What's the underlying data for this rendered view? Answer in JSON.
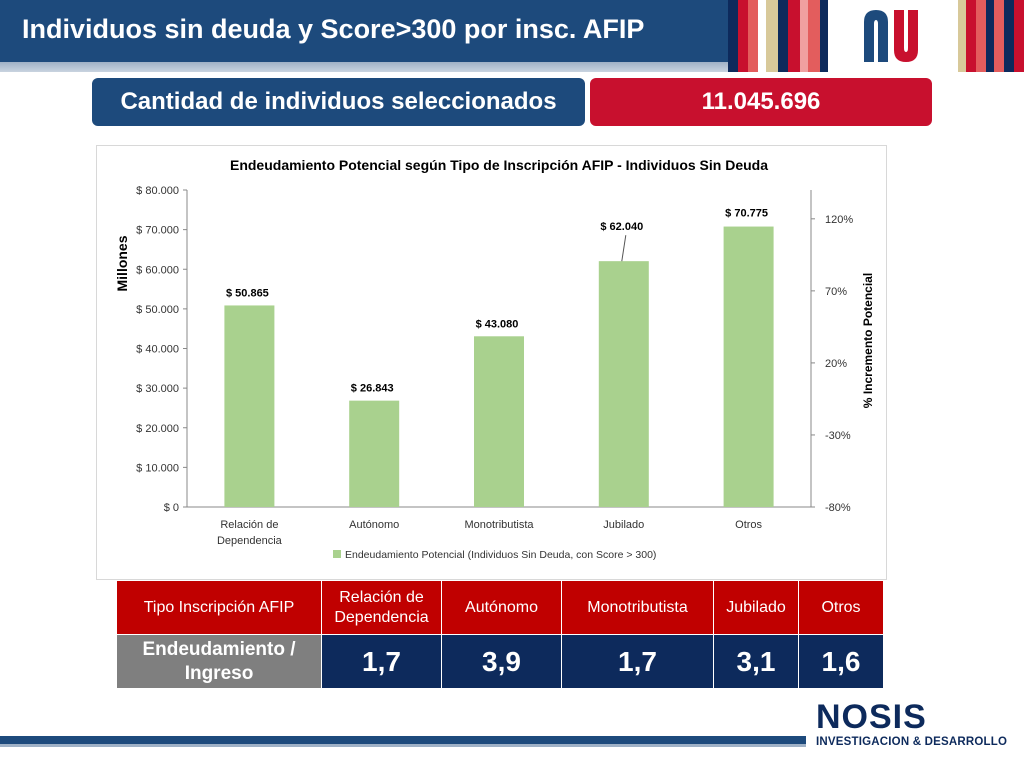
{
  "header": {
    "title": "Individuos sin deuda y Score>300 por insc. AFIP"
  },
  "summary": {
    "label": "Cantidad de individuos seleccionados",
    "value": "11.045.696"
  },
  "colors": {
    "navy": "#1d4a7c",
    "red": "#c8102e",
    "bar_green": "#a9d18e",
    "table_value_bg": "#0d2a5c",
    "table_label_bg": "#7f7f7f"
  },
  "chart_data": {
    "type": "bar",
    "title": "Endeudamiento Potencial según Tipo de Inscripción  AFIP - Individuos Sin Deuda",
    "categories": [
      "Relación de Dependencia",
      "Autónomo",
      "Monotributista",
      "Jubilado",
      "Otros"
    ],
    "series": [
      {
        "name": "Endeudamiento Potencial (Individuos Sin Deuda, con Score > 300)",
        "values": [
          50865,
          26843,
          43080,
          62040,
          70775
        ],
        "labels": [
          "$ 50.865",
          "$ 26.843",
          "$ 43.080",
          "$ 62.040",
          "$ 70.775"
        ]
      }
    ],
    "ylabel": "Millones",
    "ylim": [
      0,
      80000
    ],
    "yticks": [
      {
        "value": 0,
        "label": "$ 0"
      },
      {
        "value": 10000,
        "label": "$ 10.000"
      },
      {
        "value": 20000,
        "label": "$ 20.000"
      },
      {
        "value": 30000,
        "label": "$ 30.000"
      },
      {
        "value": 40000,
        "label": "$ 40.000"
      },
      {
        "value": 50000,
        "label": "$ 50.000"
      },
      {
        "value": 60000,
        "label": "$ 60.000"
      },
      {
        "value": 70000,
        "label": "$ 70.000"
      },
      {
        "value": 80000,
        "label": "$ 80.000"
      }
    ],
    "y2label": "% Incremento Potencial",
    "y2lim": [
      -80,
      140
    ],
    "y2ticks": [
      {
        "value": -80,
        "label": "-80%"
      },
      {
        "value": -30,
        "label": "-30%"
      },
      {
        "value": 20,
        "label": "20%"
      },
      {
        "value": 70,
        "label": "70%"
      },
      {
        "value": 120,
        "label": "120%"
      }
    ],
    "grid": false,
    "legend": "bottom"
  },
  "table": {
    "header_label": "Tipo Inscripción AFIP",
    "columns": [
      "Relación de Dependencia",
      "Autónomo",
      "Monotributista",
      "Jubilado",
      "Otros"
    ],
    "row_label": "Endeudamiento / Ingreso",
    "values": [
      "1,7",
      "3,9",
      "1,7",
      "3,1",
      "1,6"
    ]
  },
  "footer": {
    "brand": "NOSIS",
    "tagline": "INVESTIGACION & DESARROLLO"
  }
}
